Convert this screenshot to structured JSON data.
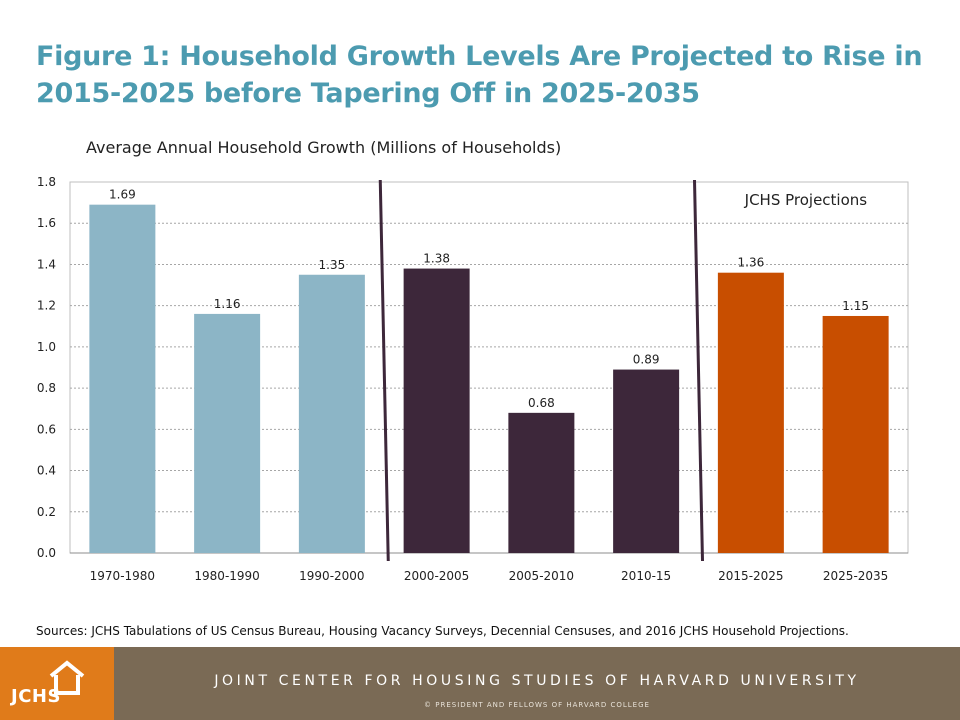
{
  "title": "Figure 1: Household Growth Levels Are Projected to Rise in 2015-2025 before Tapering Off in 2025-2035",
  "source": "Sources: JCHS Tabulations of US Census Bureau, Housing Vacancy Surveys, Decennial Censuses, and 2016 JCHS Household Projections.",
  "footer": {
    "logo_text": "JCHS",
    "org": "JOINT CENTER FOR HOUSING STUDIES OF HARVARD UNIVERSITY",
    "copyright": "© PRESIDENT AND FELLOWS OF HARVARD COLLEGE",
    "logo_color": "#e07b1a",
    "bar_color": "#7a6a55"
  },
  "chart_data": {
    "type": "bar",
    "title": "Average Annual Household Growth (Millions of Households)",
    "categories": [
      "1970-1980",
      "1980-1990",
      "1990-2000",
      "2000-2005",
      "2005-2010",
      "2010-15",
      "2015-2025",
      "2025-2035"
    ],
    "values": [
      1.69,
      1.16,
      1.35,
      1.38,
      0.68,
      0.89,
      1.36,
      1.15
    ],
    "data_labels": [
      "1.69",
      "1.16",
      "1.35",
      "1.38",
      "0.68",
      "0.89",
      "1.36",
      "1.15"
    ],
    "colors": [
      "#8cb5c6",
      "#8cb5c6",
      "#8cb5c6",
      "#3d273a",
      "#3d273a",
      "#3d273a",
      "#c84e00",
      "#c84e00"
    ],
    "ylim": [
      0,
      1.8
    ],
    "yticks": [
      "0.0",
      "0.2",
      "0.4",
      "0.6",
      "0.8",
      "1.0",
      "1.2",
      "1.4",
      "1.6",
      "1.8"
    ],
    "grid": true,
    "annotation": "JCHS Projections",
    "dividers_after_category_index": [
      2,
      5
    ],
    "divider_color": "#3d273a"
  }
}
